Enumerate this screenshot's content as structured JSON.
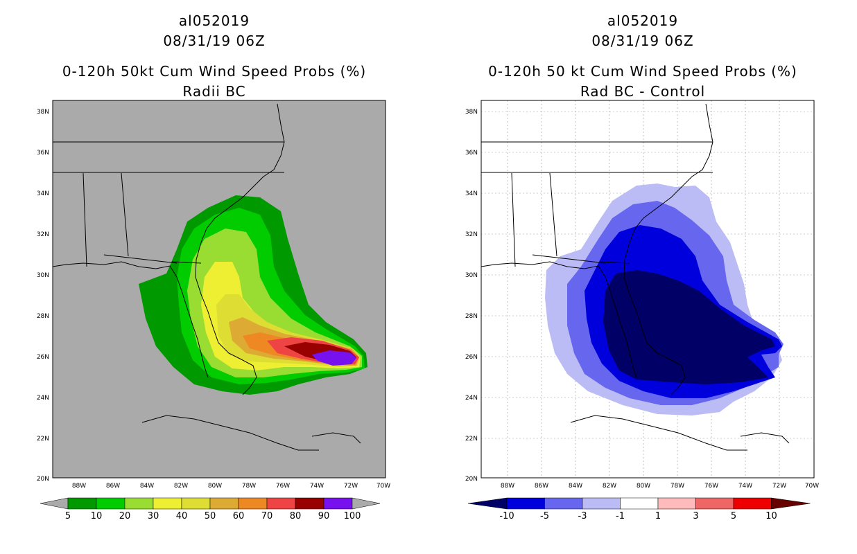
{
  "panels": [
    {
      "storm_id": "al052019",
      "datetime": "08/31/19 06Z",
      "title_line1": "0-120h 50kt Cum Wind Speed Probs (%)",
      "title_line2": "Radii BC",
      "lat_labels": [
        "38N",
        "36N",
        "34N",
        "32N",
        "30N",
        "28N",
        "26N",
        "24N",
        "22N",
        "20N"
      ],
      "lon_labels": [
        "88W",
        "86W",
        "84W",
        "82W",
        "80W",
        "78W",
        "76W",
        "74W",
        "72W",
        "70W"
      ],
      "legend": {
        "colors": [
          "#009900",
          "#00cc00",
          "#99dd33",
          "#eeee33",
          "#dddd33",
          "#ddaa33",
          "#ee8822",
          "#ee4444",
          "#990000",
          "#7711ee"
        ],
        "labels": [
          "5",
          "10",
          "20",
          "30",
          "40",
          "50",
          "60",
          "70",
          "80",
          "90",
          "100"
        ]
      }
    },
    {
      "storm_id": "al052019",
      "datetime": "08/31/19 06Z",
      "title_line1": "0-120h 50 kt Cum Wind Speed Probs (%)",
      "title_line2": "Rad BC - Control",
      "lat_labels": [
        "38N",
        "36N",
        "34N",
        "32N",
        "30N",
        "28N",
        "26N",
        "24N",
        "22N",
        "20N"
      ],
      "lon_labels": [
        "88W",
        "86W",
        "84W",
        "82W",
        "80W",
        "78W",
        "76W",
        "74W",
        "72W",
        "70W"
      ],
      "legend": {
        "colors": [
          "#0000dd",
          "#6666ee",
          "#bbbbf6",
          "#ffffff",
          "#ffbbbb",
          "#ee6666",
          "#ee0000"
        ],
        "labels": [
          "-10",
          "-5",
          "-3",
          "-1",
          "1",
          "3",
          "5",
          "10"
        ],
        "low_color": "#000066",
        "high_color": "#660000"
      }
    }
  ]
}
